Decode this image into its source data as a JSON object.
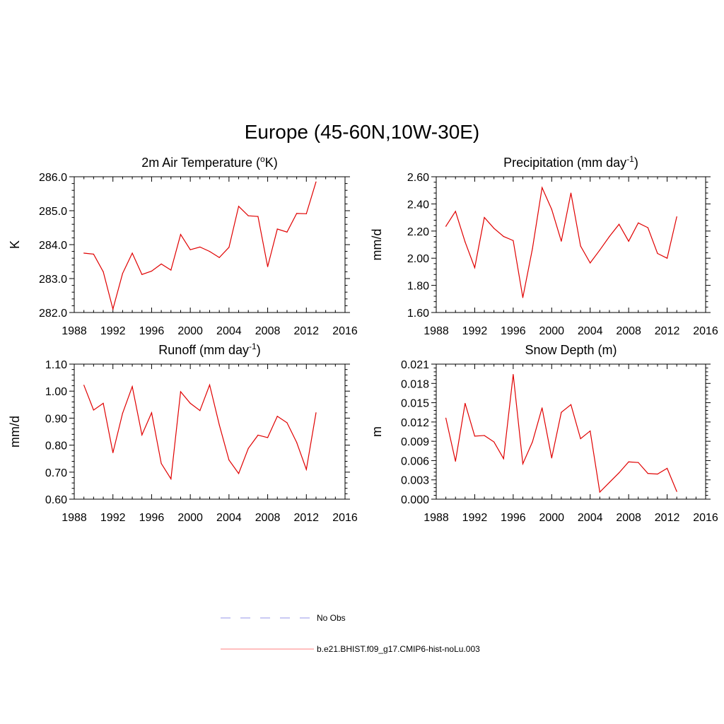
{
  "figure": {
    "title": "Europe (45-60N,10W-30E)"
  },
  "chart_data": [
    {
      "type": "line",
      "title": "2m Air Temperature (",
      "title_sup": "o",
      "title_end": "K)",
      "ylabel": "K",
      "xlim": [
        1988,
        2016
      ],
      "ylim": [
        282.0,
        286.0
      ],
      "xticks": [
        "1988",
        "1992",
        "1996",
        "2000",
        "2004",
        "2008",
        "2012",
        "2016"
      ],
      "yticks": [
        "282.0",
        "283.0",
        "284.0",
        "285.0",
        "286.0"
      ],
      "x": [
        1989,
        1990,
        1991,
        1992,
        1993,
        1994,
        1995,
        1996,
        1997,
        1998,
        1999,
        2000,
        2001,
        2002,
        2003,
        2004,
        2005,
        2006,
        2007,
        2008,
        2009,
        2010,
        2011,
        2012,
        2013
      ],
      "series": [
        {
          "color": "#e00000",
          "values": [
            283.75,
            283.72,
            283.2,
            282.1,
            283.15,
            283.75,
            283.12,
            283.22,
            283.43,
            283.25,
            284.3,
            283.85,
            283.93,
            283.8,
            283.62,
            283.92,
            285.13,
            284.85,
            284.83,
            283.35,
            284.46,
            284.37,
            284.92,
            284.91,
            285.85
          ]
        }
      ]
    },
    {
      "type": "line",
      "title": "Precipitation (mm day",
      "title_sup": "-1",
      "title_end": ")",
      "ylabel": "mm/d",
      "xlim": [
        1988,
        2016
      ],
      "ylim": [
        1.6,
        2.6
      ],
      "xticks": [
        "1988",
        "1992",
        "1996",
        "2000",
        "2004",
        "2008",
        "2012",
        "2016"
      ],
      "yticks": [
        "1.60",
        "1.80",
        "2.00",
        "2.20",
        "2.40",
        "2.60"
      ],
      "x": [
        1989,
        1990,
        1991,
        1992,
        1993,
        1994,
        1995,
        1996,
        1997,
        1998,
        1999,
        2000,
        2001,
        2002,
        2003,
        2004,
        2005,
        2006,
        2007,
        2008,
        2009,
        2010,
        2011,
        2012,
        2013
      ],
      "series": [
        {
          "color": "#e00000",
          "values": [
            2.235,
            2.345,
            2.12,
            1.93,
            2.3,
            2.22,
            2.16,
            2.13,
            1.71,
            2.07,
            2.52,
            2.36,
            2.125,
            2.48,
            2.09,
            1.965,
            2.06,
            2.16,
            2.25,
            2.125,
            2.26,
            2.225,
            2.035,
            2.0,
            2.305
          ]
        }
      ]
    },
    {
      "type": "line",
      "title": "Runoff (mm day",
      "title_sup": "-1",
      "title_end": ")",
      "ylabel": "mm/d",
      "xlim": [
        1988,
        2016
      ],
      "ylim": [
        0.6,
        1.1
      ],
      "xticks": [
        "1988",
        "1992",
        "1996",
        "2000",
        "2004",
        "2008",
        "2012",
        "2016"
      ],
      "yticks": [
        "0.60",
        "0.70",
        "0.80",
        "0.90",
        "1.00",
        "1.10"
      ],
      "x": [
        1989,
        1990,
        1991,
        1992,
        1993,
        1994,
        1995,
        1996,
        1997,
        1998,
        1999,
        2000,
        2001,
        2002,
        2003,
        2004,
        2005,
        2006,
        2007,
        2008,
        2009,
        2010,
        2011,
        2012,
        2013
      ],
      "series": [
        {
          "color": "#e00000",
          "values": [
            1.022,
            0.93,
            0.955,
            0.772,
            0.918,
            1.017,
            0.838,
            0.92,
            0.732,
            0.675,
            0.998,
            0.955,
            0.928,
            1.023,
            0.875,
            0.745,
            0.695,
            0.788,
            0.837,
            0.828,
            0.907,
            0.883,
            0.81,
            0.71,
            0.92
          ]
        }
      ]
    },
    {
      "type": "line",
      "title": "Snow Depth (m)",
      "title_sup": "",
      "title_end": "",
      "ylabel": "m",
      "xlim": [
        1988,
        2016
      ],
      "ylim": [
        0.0,
        0.021
      ],
      "xticks": [
        "1988",
        "1992",
        "1996",
        "2000",
        "2004",
        "2008",
        "2012",
        "2016"
      ],
      "yticks": [
        "0.000",
        "0.003",
        "0.006",
        "0.009",
        "0.012",
        "0.015",
        "0.018",
        "0.021"
      ],
      "x": [
        1989,
        1990,
        1991,
        1992,
        1993,
        1994,
        1995,
        1996,
        1997,
        1998,
        1999,
        2000,
        2001,
        2002,
        2003,
        2004,
        2005,
        2006,
        2007,
        2008,
        2009,
        2010,
        2011,
        2012,
        2013
      ],
      "series": [
        {
          "color": "#e00000",
          "values": [
            0.0126,
            0.0059,
            0.0149,
            0.0098,
            0.0099,
            0.0089,
            0.0063,
            0.0194,
            0.0055,
            0.0089,
            0.0142,
            0.0064,
            0.0135,
            0.0147,
            0.0094,
            0.0106,
            0.0011,
            0.0026,
            0.0041,
            0.0058,
            0.0057,
            0.004,
            0.0039,
            0.0048,
            0.0012
          ]
        }
      ]
    }
  ],
  "legend": {
    "entries": [
      {
        "label": "No Obs",
        "color": "#aaaaee",
        "dash": "dashed"
      },
      {
        "label": "b.e21.BHIST.f09_g17.CMIP6-hist-noLu.003",
        "color": "#ff9999",
        "dash": "solid"
      }
    ]
  }
}
